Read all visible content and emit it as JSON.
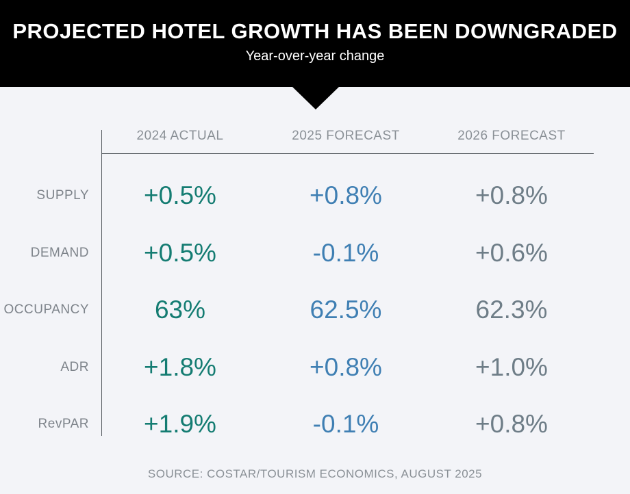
{
  "chart_data": {
    "type": "table",
    "title": "PROJECTED HOTEL GROWTH HAS BEEN DOWNGRADED",
    "subtitle": "Year-over-year change",
    "columns": [
      "2024 ACTUAL",
      "2025 FORECAST",
      "2026 FORECAST"
    ],
    "rows": [
      {
        "label": "SUPPLY",
        "values": [
          "+0.5%",
          "+0.8%",
          "+0.8%"
        ]
      },
      {
        "label": "DEMAND",
        "values": [
          "+0.5%",
          "-0.1%",
          "+0.6%"
        ]
      },
      {
        "label": "OCCUPANCY",
        "values": [
          "63%",
          "62.5%",
          "62.3%"
        ]
      },
      {
        "label": "ADR",
        "values": [
          "+1.8%",
          "+0.8%",
          "+1.0%"
        ]
      },
      {
        "label": "RevPAR",
        "values": [
          "+1.9%",
          "-0.1%",
          "+0.8%"
        ]
      }
    ],
    "column_colors": [
      "#147c72",
      "#3f7fb3",
      "#6e7d87"
    ],
    "source": "SOURCE: COSTAR/TOURISM ECONOMICS, AUGUST 2025"
  }
}
